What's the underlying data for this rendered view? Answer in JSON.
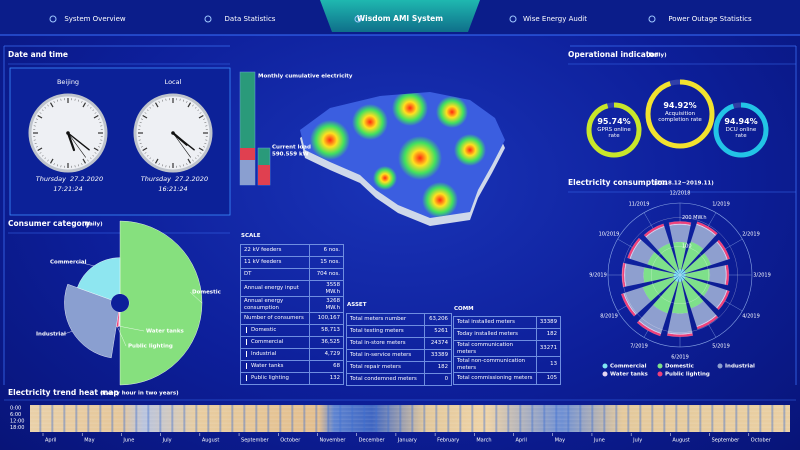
{
  "nav": {
    "tabs": [
      "System Overview",
      "Data Statistics",
      "Wisdom AMI System",
      "Wise Energy Audit",
      "Power Outage Statistics"
    ]
  },
  "date_time": {
    "title": "Date and time",
    "clocks": [
      {
        "label": "Beijing",
        "day": "Thursday",
        "date": "27.2.2020",
        "time": "17:21:24"
      },
      {
        "label": "Local",
        "day": "Thursday",
        "date": "27.2.2020",
        "time": "16:21:24"
      }
    ]
  },
  "consumer_category": {
    "title": "Consumer category",
    "subtitle": "(Daily)",
    "categories": [
      "Domestic",
      "Water tanks",
      "Public lighting",
      "Industrial",
      "Commercial"
    ],
    "values": [
      50,
      1,
      1.5,
      28,
      19.5
    ],
    "colors": [
      "#86e07e",
      "#e6d6f2",
      "#f0407a",
      "#8a9fd0",
      "#8ee6f0"
    ]
  },
  "monthly": {
    "title": "Monthly cumulative electricity",
    "load_label": "Current load",
    "load_value": "590.559 kW"
  },
  "scale": {
    "title": "SCALE",
    "rows": [
      [
        "22 kV feeders",
        "6 nos."
      ],
      [
        "11 kV feeders",
        "15 nos."
      ],
      [
        "DT",
        "704 nos."
      ],
      [
        "Annual energy input",
        "3558 MW.h"
      ],
      [
        "Annual energy consumption",
        "3268 MW.h"
      ],
      [
        "Number of consumers",
        "100,167"
      ],
      [
        "Domestic",
        "58,713"
      ],
      [
        "Commercial",
        "36,525"
      ],
      [
        "Industrial",
        "4,729"
      ],
      [
        "Water tanks",
        "68"
      ],
      [
        "Public lighting",
        "132"
      ]
    ]
  },
  "asset": {
    "title": "ASSET",
    "rows": [
      [
        "Total meters number",
        "63,206"
      ],
      [
        "Total testing meters",
        "5261"
      ],
      [
        "Total in-store meters",
        "24374"
      ],
      [
        "Total in-service meters",
        "33389"
      ],
      [
        "Total repair meters",
        "182"
      ],
      [
        "Total condemned meters",
        "0"
      ]
    ]
  },
  "comm": {
    "title": "COMM",
    "rows": [
      [
        "Total installed meters",
        "33389"
      ],
      [
        "Today installed meters",
        "182"
      ],
      [
        "Total communication meters",
        "33271"
      ],
      [
        "Total non-communication meters",
        "13"
      ],
      [
        "Total commissioning meters",
        "105"
      ]
    ]
  },
  "operational": {
    "title": "Operational indicator",
    "subtitle": "(Daily)",
    "values": [
      95.74,
      94.92,
      94.94
    ],
    "value_labels": [
      "95.74%",
      "94.92%",
      "94.94%"
    ],
    "names": [
      "GPRS online rate",
      "Acquisition completion rate",
      "DCU online rate"
    ],
    "colors": [
      "#c8e62a",
      "#f2e22e",
      "#22c4e6"
    ]
  },
  "consumption": {
    "title": "Electricity consumption",
    "subtitle": "(2018.12~2019.11)",
    "type": "bar",
    "polar": true,
    "categories": [
      "12/2018",
      "1/2019",
      "2/2019",
      "3/2019",
      "4/2019",
      "5/2019",
      "6/2019",
      "7/2019",
      "8/2019",
      "9/2019",
      "10/2019",
      "11/2019"
    ],
    "rlim": [
      0,
      250
    ],
    "rticks": [
      100,
      {
        "value": 200,
        "label": "200 MW.h"
      }
    ],
    "series": [
      {
        "name": "Commercial",
        "color": "#7fe6f2",
        "values": [
          20,
          22,
          21,
          19,
          20,
          22,
          24,
          25,
          24,
          22,
          21,
          20
        ]
      },
      {
        "name": "Domestic",
        "color": "#7ee08a",
        "values": [
          95,
          100,
          92,
          85,
          90,
          100,
          110,
          115,
          112,
          105,
          98,
          96
        ]
      },
      {
        "name": "Industrial",
        "color": "#8e9fcf",
        "values": [
          60,
          62,
          58,
          55,
          60,
          65,
          70,
          72,
          68,
          64,
          62,
          60
        ]
      },
      {
        "name": "Water tanks",
        "color": "#e6d6f2",
        "values": [
          3,
          3,
          3,
          3,
          3,
          3,
          3,
          3,
          3,
          3,
          3,
          3
        ]
      },
      {
        "name": "Public lighting",
        "color": "#f0407a",
        "values": [
          8,
          8,
          8,
          8,
          8,
          8,
          8,
          8,
          8,
          8,
          8,
          8
        ]
      }
    ]
  },
  "heatmap": {
    "title": "Electricity trend heat map",
    "subtitle": "(Every hour in two years)",
    "y_labels": [
      "0:00",
      "6:00",
      "12:00",
      "18:00"
    ],
    "x_labels": [
      "April",
      "May",
      "June",
      "July",
      "August",
      "September",
      "October",
      "November",
      "December",
      "January",
      "February",
      "March",
      "April",
      "May",
      "June",
      "July",
      "August",
      "September",
      "October"
    ]
  }
}
